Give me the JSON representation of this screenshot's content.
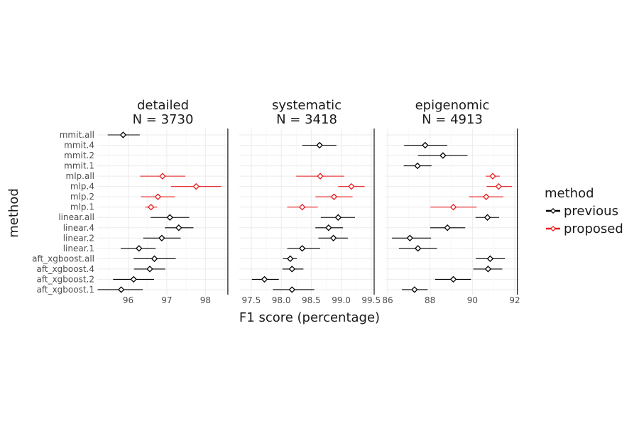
{
  "chart_data": {
    "type": "scatter",
    "style": "faceted point-range (dot and whisker) plot",
    "xlabel": "F1 score (percentage)",
    "ylabel": "method",
    "categories": [
      "mmit.all",
      "mmit.4",
      "mmit.2",
      "mmit.1",
      "mlp.all",
      "mlp.4",
      "mlp.2",
      "mlp.1",
      "linear.all",
      "linear.4",
      "linear.2",
      "linear.1",
      "aft_xgboost.all",
      "aft_xgboost.4",
      "aft_xgboost.2",
      "aft_xgboost.1"
    ],
    "legend": {
      "title": "method",
      "placement": "right",
      "entries": [
        {
          "label": "previous",
          "color": "#000000"
        },
        {
          "label": "proposed",
          "color": "#e41a1c"
        }
      ]
    },
    "colors": {
      "previous": "#000000",
      "proposed": "#e41a1c"
    },
    "grid": true,
    "reference_line": "vertical line at the right edge of each panel",
    "panels": [
      {
        "title": [
          "detailed",
          "N = 3730"
        ],
        "xlim": [
          95.2,
          98.6
        ],
        "xticks": [
          "96",
          "97",
          "98"
        ],
        "reference_x": 98.58,
        "points": [
          {
            "method": "mmit.all",
            "group": "previous",
            "mean": 95.87,
            "low": 95.47,
            "high": 96.3
          },
          {
            "method": "mmit.4",
            "group": "previous",
            "mean": null,
            "low": null,
            "high": null
          },
          {
            "method": "mmit.2",
            "group": "previous",
            "mean": null,
            "low": null,
            "high": null
          },
          {
            "method": "mmit.1",
            "group": "previous",
            "mean": null,
            "low": null,
            "high": null
          },
          {
            "method": "mlp.all",
            "group": "proposed",
            "mean": 96.89,
            "low": 96.31,
            "high": 97.48
          },
          {
            "method": "mlp.4",
            "group": "proposed",
            "mean": 97.76,
            "low": 97.11,
            "high": 98.41
          },
          {
            "method": "mlp.2",
            "group": "proposed",
            "mean": 96.77,
            "low": 96.33,
            "high": 97.21
          },
          {
            "method": "mlp.1",
            "group": "proposed",
            "mean": 96.59,
            "low": 96.44,
            "high": 96.75
          },
          {
            "method": "linear.all",
            "group": "previous",
            "mean": 97.08,
            "low": 96.58,
            "high": 97.58
          },
          {
            "method": "linear.4",
            "group": "previous",
            "mean": 97.31,
            "low": 96.95,
            "high": 97.69
          },
          {
            "method": "linear.2",
            "group": "previous",
            "mean": 96.87,
            "low": 96.39,
            "high": 97.36
          },
          {
            "method": "linear.1",
            "group": "previous",
            "mean": 96.28,
            "low": 95.81,
            "high": 96.71
          },
          {
            "method": "aft_xgboost.all",
            "group": "previous",
            "mean": 96.68,
            "low": 96.14,
            "high": 97.23
          },
          {
            "method": "aft_xgboost.4",
            "group": "previous",
            "mean": 96.56,
            "low": 96.15,
            "high": 96.96
          },
          {
            "method": "aft_xgboost.2",
            "group": "previous",
            "mean": 96.14,
            "low": 95.61,
            "high": 96.67
          },
          {
            "method": "aft_xgboost.1",
            "group": "previous",
            "mean": 95.82,
            "low": 95.21,
            "high": 96.38
          }
        ]
      },
      {
        "title": [
          "systematic",
          "N = 3418"
        ],
        "xlim": [
          97.3,
          99.55
        ],
        "xticks": [
          "97.5",
          "98.0",
          "98.5",
          "99.0",
          "99.5"
        ],
        "reference_x": 99.55,
        "points": [
          {
            "method": "mmit.all",
            "group": "previous",
            "mean": null,
            "low": null,
            "high": null
          },
          {
            "method": "mmit.4",
            "group": "previous",
            "mean": 98.64,
            "low": 98.35,
            "high": 98.92
          },
          {
            "method": "mmit.2",
            "group": "previous",
            "mean": null,
            "low": null,
            "high": null
          },
          {
            "method": "mmit.1",
            "group": "previous",
            "mean": null,
            "low": null,
            "high": null
          },
          {
            "method": "mlp.all",
            "group": "proposed",
            "mean": 98.65,
            "low": 98.25,
            "high": 99.05
          },
          {
            "method": "mlp.4",
            "group": "proposed",
            "mean": 99.17,
            "low": 98.95,
            "high": 99.39
          },
          {
            "method": "mlp.2",
            "group": "proposed",
            "mean": 98.88,
            "low": 98.57,
            "high": 99.19
          },
          {
            "method": "mlp.1",
            "group": "proposed",
            "mean": 98.35,
            "low": 98.1,
            "high": 98.61
          },
          {
            "method": "linear.all",
            "group": "previous",
            "mean": 98.95,
            "low": 98.66,
            "high": 99.23
          },
          {
            "method": "linear.4",
            "group": "previous",
            "mean": 98.79,
            "low": 98.57,
            "high": 99.03
          },
          {
            "method": "linear.2",
            "group": "previous",
            "mean": 98.87,
            "low": 98.62,
            "high": 99.11
          },
          {
            "method": "linear.1",
            "group": "previous",
            "mean": 98.35,
            "low": 98.1,
            "high": 98.65
          },
          {
            "method": "aft_xgboost.all",
            "group": "previous",
            "mean": 98.15,
            "low": 98.03,
            "high": 98.26
          },
          {
            "method": "aft_xgboost.4",
            "group": "previous",
            "mean": 98.18,
            "low": 98.02,
            "high": 98.37
          },
          {
            "method": "aft_xgboost.2",
            "group": "previous",
            "mean": 97.72,
            "low": 97.51,
            "high": 97.96
          },
          {
            "method": "aft_xgboost.1",
            "group": "previous",
            "mean": 98.18,
            "low": 97.86,
            "high": 98.55
          }
        ]
      },
      {
        "title": [
          "epigenomic",
          "N = 4913"
        ],
        "xlim": [
          85.9,
          92.2
        ],
        "xticks": [
          "86",
          "88",
          "90",
          "92"
        ],
        "reference_x": 92.12,
        "points": [
          {
            "method": "mmit.all",
            "group": "previous",
            "mean": null,
            "low": null,
            "high": null
          },
          {
            "method": "mmit.4",
            "group": "previous",
            "mean": 87.77,
            "low": 86.78,
            "high": 88.81
          },
          {
            "method": "mmit.2",
            "group": "previous",
            "mean": 88.61,
            "low": 87.43,
            "high": 89.77
          },
          {
            "method": "mmit.1",
            "group": "previous",
            "mean": 87.41,
            "low": 86.76,
            "high": 88.07
          },
          {
            "method": "mlp.all",
            "group": "proposed",
            "mean": 90.96,
            "low": 90.63,
            "high": 91.29
          },
          {
            "method": "mlp.4",
            "group": "proposed",
            "mean": 91.24,
            "low": 90.67,
            "high": 91.87
          },
          {
            "method": "mlp.2",
            "group": "proposed",
            "mean": 90.65,
            "low": 89.84,
            "high": 91.46
          },
          {
            "method": "mlp.1",
            "group": "proposed",
            "mean": 89.1,
            "low": 88.02,
            "high": 90.2
          },
          {
            "method": "linear.all",
            "group": "previous",
            "mean": 90.71,
            "low": 90.15,
            "high": 91.26
          },
          {
            "method": "linear.4",
            "group": "previous",
            "mean": 88.82,
            "low": 88.01,
            "high": 89.66
          },
          {
            "method": "linear.2",
            "group": "previous",
            "mean": 87.05,
            "low": 86.2,
            "high": 88.05
          },
          {
            "method": "linear.1",
            "group": "previous",
            "mean": 87.43,
            "low": 86.53,
            "high": 88.33
          },
          {
            "method": "aft_xgboost.all",
            "group": "previous",
            "mean": 90.84,
            "low": 90.16,
            "high": 91.53
          },
          {
            "method": "aft_xgboost.4",
            "group": "previous",
            "mean": 90.74,
            "low": 90.04,
            "high": 91.41
          },
          {
            "method": "aft_xgboost.2",
            "group": "previous",
            "mean": 89.1,
            "low": 88.24,
            "high": 89.93
          },
          {
            "method": "aft_xgboost.1",
            "group": "previous",
            "mean": 87.27,
            "low": 86.67,
            "high": 87.89
          }
        ]
      }
    ]
  }
}
